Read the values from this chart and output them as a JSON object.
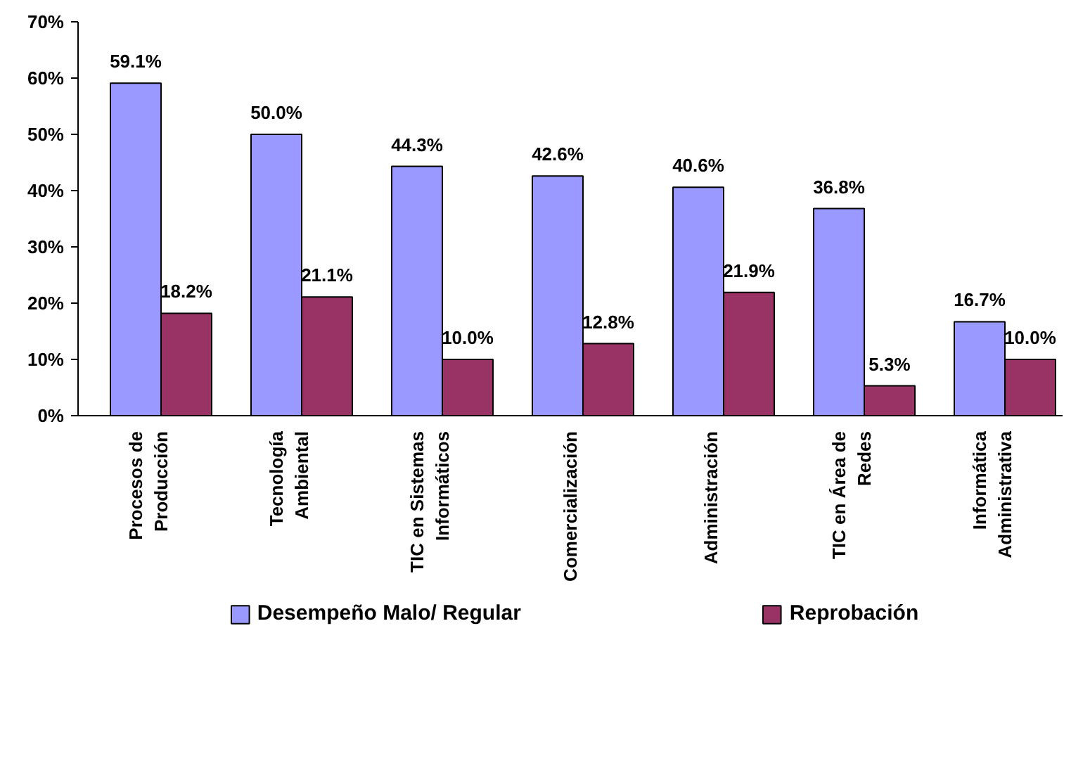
{
  "chart_data": {
    "type": "bar",
    "categories": [
      "Procesos de\nProducción",
      "Tecnología\nAmbiental",
      "TIC en Sistemas\nInformáticos",
      "Comercialización",
      "Administración",
      "TIC en Área de\nRedes",
      "Informática\nAdministrativa"
    ],
    "series": [
      {
        "name": "Desempeño Malo/ Regular",
        "color": "#9999ff",
        "values": [
          59.1,
          50.0,
          44.3,
          42.6,
          40.6,
          36.8,
          16.7
        ],
        "value_labels": [
          "59.1%",
          "50.0%",
          "44.3%",
          "42.6%",
          "40.6%",
          "36.8%",
          "16.7%"
        ]
      },
      {
        "name": "Reprobación",
        "color": "#993366",
        "values": [
          18.2,
          21.1,
          10.0,
          12.8,
          21.9,
          5.3,
          10.0
        ],
        "value_labels": [
          "18.2%",
          "21.1%",
          "10.0%",
          "12.8%",
          "21.9%",
          "5.3%",
          "10.0%"
        ]
      }
    ],
    "ylim": [
      0,
      70
    ],
    "yticks": [
      {
        "value": 0,
        "label": "0%"
      },
      {
        "value": 10,
        "label": "10%"
      },
      {
        "value": 20,
        "label": "20%"
      },
      {
        "value": 30,
        "label": "30%"
      },
      {
        "value": 40,
        "label": "40%"
      },
      {
        "value": 50,
        "label": "50%"
      },
      {
        "value": 60,
        "label": "60%"
      },
      {
        "value": 70,
        "label": "70%"
      }
    ],
    "grid": false,
    "legend": "bottom"
  }
}
